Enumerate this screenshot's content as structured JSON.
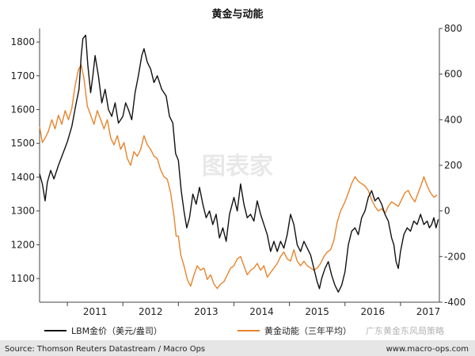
{
  "chart_data": {
    "type": "line",
    "title": "黄金与动能",
    "x_ticks": [
      "2011",
      "2012",
      "2013",
      "2014",
      "2015",
      "2016",
      "2017"
    ],
    "left_axis": {
      "ticks": [
        1100,
        1200,
        1300,
        1400,
        1500,
        1600,
        1700,
        1800
      ],
      "range": [
        1030,
        1840
      ]
    },
    "right_axis": {
      "ticks": [
        -400,
        -200,
        0,
        200,
        400,
        600,
        800
      ],
      "range": [
        -400,
        800
      ]
    },
    "x_range": [
      2010.5,
      2017.7
    ],
    "grid": false,
    "legend_position": "bottom",
    "series": [
      {
        "name": "LBM金价（美元/盎司）",
        "axis": "left",
        "color": "#111111",
        "points": [
          [
            2010.5,
            1410
          ],
          [
            2010.55,
            1380
          ],
          [
            2010.6,
            1330
          ],
          [
            2010.64,
            1385
          ],
          [
            2010.7,
            1420
          ],
          [
            2010.76,
            1395
          ],
          [
            2010.84,
            1435
          ],
          [
            2010.92,
            1470
          ],
          [
            2011.0,
            1505
          ],
          [
            2011.08,
            1550
          ],
          [
            2011.16,
            1620
          ],
          [
            2011.21,
            1660
          ],
          [
            2011.25,
            1760
          ],
          [
            2011.28,
            1810
          ],
          [
            2011.33,
            1820
          ],
          [
            2011.37,
            1730
          ],
          [
            2011.42,
            1650
          ],
          [
            2011.46,
            1700
          ],
          [
            2011.5,
            1760
          ],
          [
            2011.56,
            1700
          ],
          [
            2011.62,
            1620
          ],
          [
            2011.68,
            1660
          ],
          [
            2011.74,
            1600
          ],
          [
            2011.8,
            1580
          ],
          [
            2011.86,
            1620
          ],
          [
            2011.92,
            1560
          ],
          [
            2012.0,
            1580
          ],
          [
            2012.05,
            1620
          ],
          [
            2012.1,
            1600
          ],
          [
            2012.16,
            1570
          ],
          [
            2012.22,
            1650
          ],
          [
            2012.28,
            1700
          ],
          [
            2012.34,
            1760
          ],
          [
            2012.38,
            1780
          ],
          [
            2012.44,
            1740
          ],
          [
            2012.5,
            1720
          ],
          [
            2012.56,
            1680
          ],
          [
            2012.62,
            1700
          ],
          [
            2012.7,
            1660
          ],
          [
            2012.78,
            1640
          ],
          [
            2012.84,
            1580
          ],
          [
            2012.9,
            1560
          ],
          [
            2012.95,
            1470
          ],
          [
            2013.0,
            1450
          ],
          [
            2013.05,
            1360
          ],
          [
            2013.1,
            1300
          ],
          [
            2013.15,
            1250
          ],
          [
            2013.2,
            1280
          ],
          [
            2013.26,
            1350
          ],
          [
            2013.32,
            1320
          ],
          [
            2013.38,
            1370
          ],
          [
            2013.44,
            1320
          ],
          [
            2013.5,
            1280
          ],
          [
            2013.56,
            1300
          ],
          [
            2013.62,
            1260
          ],
          [
            2013.68,
            1290
          ],
          [
            2013.74,
            1220
          ],
          [
            2013.8,
            1250
          ],
          [
            2013.86,
            1210
          ],
          [
            2013.92,
            1290
          ],
          [
            2014.0,
            1340
          ],
          [
            2014.06,
            1300
          ],
          [
            2014.12,
            1380
          ],
          [
            2014.18,
            1320
          ],
          [
            2014.24,
            1280
          ],
          [
            2014.3,
            1290
          ],
          [
            2014.36,
            1270
          ],
          [
            2014.42,
            1330
          ],
          [
            2014.48,
            1290
          ],
          [
            2014.54,
            1260
          ],
          [
            2014.6,
            1230
          ],
          [
            2014.66,
            1180
          ],
          [
            2014.72,
            1210
          ],
          [
            2014.78,
            1180
          ],
          [
            2014.84,
            1210
          ],
          [
            2014.9,
            1190
          ],
          [
            2014.96,
            1230
          ],
          [
            2015.02,
            1290
          ],
          [
            2015.08,
            1260
          ],
          [
            2015.14,
            1200
          ],
          [
            2015.2,
            1180
          ],
          [
            2015.26,
            1210
          ],
          [
            2015.32,
            1190
          ],
          [
            2015.38,
            1170
          ],
          [
            2015.44,
            1130
          ],
          [
            2015.5,
            1090
          ],
          [
            2015.54,
            1070
          ],
          [
            2015.58,
            1100
          ],
          [
            2015.64,
            1130
          ],
          [
            2015.7,
            1150
          ],
          [
            2015.76,
            1110
          ],
          [
            2015.82,
            1080
          ],
          [
            2015.88,
            1060
          ],
          [
            2015.94,
            1080
          ],
          [
            2016.0,
            1120
          ],
          [
            2016.06,
            1200
          ],
          [
            2016.12,
            1240
          ],
          [
            2016.18,
            1250
          ],
          [
            2016.24,
            1230
          ],
          [
            2016.3,
            1280
          ],
          [
            2016.36,
            1300
          ],
          [
            2016.42,
            1340
          ],
          [
            2016.48,
            1360
          ],
          [
            2016.54,
            1330
          ],
          [
            2016.6,
            1340
          ],
          [
            2016.66,
            1320
          ],
          [
            2016.72,
            1290
          ],
          [
            2016.78,
            1270
          ],
          [
            2016.84,
            1220
          ],
          [
            2016.88,
            1200
          ],
          [
            2016.92,
            1150
          ],
          [
            2016.96,
            1130
          ],
          [
            2017.0,
            1180
          ],
          [
            2017.06,
            1230
          ],
          [
            2017.12,
            1250
          ],
          [
            2017.18,
            1240
          ],
          [
            2017.24,
            1270
          ],
          [
            2017.3,
            1260
          ],
          [
            2017.36,
            1290
          ],
          [
            2017.42,
            1260
          ],
          [
            2017.48,
            1270
          ],
          [
            2017.52,
            1250
          ],
          [
            2017.56,
            1260
          ],
          [
            2017.6,
            1280
          ],
          [
            2017.64,
            1250
          ],
          [
            2017.68,
            1275
          ]
        ]
      },
      {
        "name": "黄金动能（三年平均）",
        "axis": "right",
        "color": "#e8842c",
        "points": [
          [
            2010.5,
            370
          ],
          [
            2010.55,
            300
          ],
          [
            2010.6,
            320
          ],
          [
            2010.66,
            350
          ],
          [
            2010.72,
            400
          ],
          [
            2010.78,
            360
          ],
          [
            2010.84,
            420
          ],
          [
            2010.9,
            380
          ],
          [
            2010.96,
            440
          ],
          [
            2011.02,
            400
          ],
          [
            2011.08,
            450
          ],
          [
            2011.14,
            550
          ],
          [
            2011.2,
            620
          ],
          [
            2011.25,
            640
          ],
          [
            2011.3,
            580
          ],
          [
            2011.36,
            460
          ],
          [
            2011.42,
            420
          ],
          [
            2011.48,
            380
          ],
          [
            2011.54,
            440
          ],
          [
            2011.6,
            400
          ],
          [
            2011.66,
            360
          ],
          [
            2011.72,
            400
          ],
          [
            2011.78,
            320
          ],
          [
            2011.84,
            290
          ],
          [
            2011.9,
            330
          ],
          [
            2011.96,
            270
          ],
          [
            2012.02,
            300
          ],
          [
            2012.08,
            230
          ],
          [
            2012.14,
            200
          ],
          [
            2012.2,
            260
          ],
          [
            2012.26,
            240
          ],
          [
            2012.32,
            270
          ],
          [
            2012.38,
            330
          ],
          [
            2012.44,
            290
          ],
          [
            2012.5,
            270
          ],
          [
            2012.56,
            240
          ],
          [
            2012.62,
            230
          ],
          [
            2012.68,
            180
          ],
          [
            2012.74,
            150
          ],
          [
            2012.8,
            140
          ],
          [
            2012.86,
            80
          ],
          [
            2012.92,
            -20
          ],
          [
            2012.96,
            -110
          ],
          [
            2013.0,
            -110
          ],
          [
            2013.04,
            -190
          ],
          [
            2013.1,
            -240
          ],
          [
            2013.16,
            -300
          ],
          [
            2013.22,
            -330
          ],
          [
            2013.28,
            -280
          ],
          [
            2013.34,
            -240
          ],
          [
            2013.4,
            -260
          ],
          [
            2013.46,
            -250
          ],
          [
            2013.52,
            -300
          ],
          [
            2013.58,
            -280
          ],
          [
            2013.64,
            -320
          ],
          [
            2013.7,
            -340
          ],
          [
            2013.76,
            -320
          ],
          [
            2013.82,
            -310
          ],
          [
            2013.88,
            -280
          ],
          [
            2013.94,
            -250
          ],
          [
            2014.0,
            -240
          ],
          [
            2014.06,
            -210
          ],
          [
            2014.12,
            -200
          ],
          [
            2014.18,
            -240
          ],
          [
            2014.24,
            -280
          ],
          [
            2014.3,
            -260
          ],
          [
            2014.36,
            -250
          ],
          [
            2014.42,
            -230
          ],
          [
            2014.48,
            -260
          ],
          [
            2014.54,
            -240
          ],
          [
            2014.6,
            -290
          ],
          [
            2014.66,
            -270
          ],
          [
            2014.72,
            -250
          ],
          [
            2014.78,
            -230
          ],
          [
            2014.84,
            -200
          ],
          [
            2014.9,
            -180
          ],
          [
            2014.96,
            -210
          ],
          [
            2015.02,
            -220
          ],
          [
            2015.08,
            -170
          ],
          [
            2015.14,
            -220
          ],
          [
            2015.2,
            -240
          ],
          [
            2015.26,
            -220
          ],
          [
            2015.32,
            -240
          ],
          [
            2015.38,
            -250
          ],
          [
            2015.44,
            -260
          ],
          [
            2015.5,
            -250
          ],
          [
            2015.56,
            -230
          ],
          [
            2015.62,
            -200
          ],
          [
            2015.68,
            -180
          ],
          [
            2015.74,
            -170
          ],
          [
            2015.8,
            -130
          ],
          [
            2015.86,
            -50
          ],
          [
            2015.92,
            0
          ],
          [
            2016.0,
            40
          ],
          [
            2016.06,
            80
          ],
          [
            2016.12,
            120
          ],
          [
            2016.18,
            150
          ],
          [
            2016.24,
            130
          ],
          [
            2016.3,
            120
          ],
          [
            2016.36,
            110
          ],
          [
            2016.42,
            90
          ],
          [
            2016.48,
            50
          ],
          [
            2016.54,
            20
          ],
          [
            2016.6,
            0
          ],
          [
            2016.66,
            10
          ],
          [
            2016.72,
            -10
          ],
          [
            2016.78,
            20
          ],
          [
            2016.84,
            40
          ],
          [
            2016.9,
            30
          ],
          [
            2016.96,
            20
          ],
          [
            2017.02,
            50
          ],
          [
            2017.08,
            80
          ],
          [
            2017.14,
            90
          ],
          [
            2017.2,
            60
          ],
          [
            2017.26,
            40
          ],
          [
            2017.32,
            80
          ],
          [
            2017.38,
            120
          ],
          [
            2017.42,
            150
          ],
          [
            2017.48,
            110
          ],
          [
            2017.54,
            80
          ],
          [
            2017.6,
            60
          ],
          [
            2017.66,
            70
          ]
        ]
      }
    ]
  },
  "footer": {
    "source": "Source: Thomson Reuters Datastream / Macro Ops",
    "url": "www.macro-ops.com"
  },
  "watermarks": {
    "center": "图表家",
    "wechat": "广东黄金东风局策略"
  }
}
